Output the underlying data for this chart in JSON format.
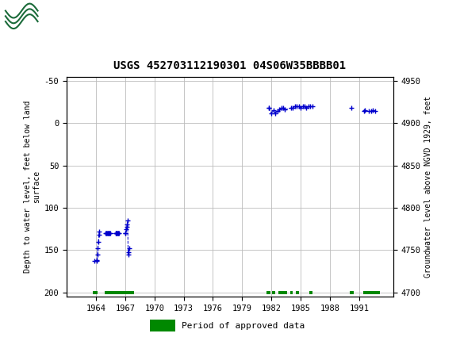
{
  "title": "USGS 452703112190301 04S06W35BBBB01",
  "ylim_left": [
    205,
    -55
  ],
  "ylim_right": [
    4695,
    4955
  ],
  "yticks_left": [
    -50,
    0,
    50,
    100,
    150,
    200
  ],
  "yticks_right": [
    4700,
    4750,
    4800,
    4850,
    4900,
    4950
  ],
  "ylabel_left": "Depth to water level, feet below land\nsurface",
  "ylabel_right": "Groundwater level above NGVD 1929, feet",
  "header_color": "#1b6b3a",
  "plot_bg": "#ffffff",
  "grid_color": "#bbbbbb",
  "data_color": "#0000cc",
  "approved_color": "#008800",
  "data_points": [
    {
      "year": 1963.85,
      "depth": 163
    },
    {
      "year": 1964.05,
      "depth": 163
    },
    {
      "year": 1964.1,
      "depth": 162
    },
    {
      "year": 1964.15,
      "depth": 155
    },
    {
      "year": 1964.2,
      "depth": 148
    },
    {
      "year": 1964.25,
      "depth": 140
    },
    {
      "year": 1964.3,
      "depth": 132
    },
    {
      "year": 1964.35,
      "depth": 128
    },
    {
      "year": 1965.0,
      "depth": 130
    },
    {
      "year": 1965.05,
      "depth": 130
    },
    {
      "year": 1965.1,
      "depth": 130
    },
    {
      "year": 1965.15,
      "depth": 130
    },
    {
      "year": 1965.2,
      "depth": 130
    },
    {
      "year": 1965.25,
      "depth": 130
    },
    {
      "year": 1965.3,
      "depth": 130
    },
    {
      "year": 1965.35,
      "depth": 130
    },
    {
      "year": 1965.4,
      "depth": 130
    },
    {
      "year": 1965.45,
      "depth": 130
    },
    {
      "year": 1966.0,
      "depth": 130
    },
    {
      "year": 1966.05,
      "depth": 130
    },
    {
      "year": 1966.1,
      "depth": 130
    },
    {
      "year": 1966.15,
      "depth": 130
    },
    {
      "year": 1966.2,
      "depth": 130
    },
    {
      "year": 1966.25,
      "depth": 130
    },
    {
      "year": 1966.3,
      "depth": 130
    },
    {
      "year": 1966.35,
      "depth": 130
    },
    {
      "year": 1967.0,
      "depth": 130
    },
    {
      "year": 1967.05,
      "depth": 130
    },
    {
      "year": 1967.1,
      "depth": 125
    },
    {
      "year": 1967.15,
      "depth": 122
    },
    {
      "year": 1967.2,
      "depth": 120
    },
    {
      "year": 1967.25,
      "depth": 115
    },
    {
      "year": 1967.3,
      "depth": 155
    },
    {
      "year": 1967.35,
      "depth": 152
    },
    {
      "year": 1967.4,
      "depth": 148
    },
    {
      "year": 1981.7,
      "depth": -18
    },
    {
      "year": 1981.75,
      "depth": -18
    },
    {
      "year": 1982.0,
      "depth": -12
    },
    {
      "year": 1982.2,
      "depth": -15
    },
    {
      "year": 1982.4,
      "depth": -12
    },
    {
      "year": 1982.6,
      "depth": -14
    },
    {
      "year": 1982.8,
      "depth": -16
    },
    {
      "year": 1983.0,
      "depth": -18
    },
    {
      "year": 1983.2,
      "depth": -18
    },
    {
      "year": 1983.4,
      "depth": -16
    },
    {
      "year": 1984.0,
      "depth": -18
    },
    {
      "year": 1984.2,
      "depth": -18
    },
    {
      "year": 1984.4,
      "depth": -20
    },
    {
      "year": 1984.6,
      "depth": -20
    },
    {
      "year": 1984.8,
      "depth": -20
    },
    {
      "year": 1985.0,
      "depth": -18
    },
    {
      "year": 1985.2,
      "depth": -20
    },
    {
      "year": 1985.4,
      "depth": -20
    },
    {
      "year": 1985.6,
      "depth": -18
    },
    {
      "year": 1985.8,
      "depth": -20
    },
    {
      "year": 1986.0,
      "depth": -20
    },
    {
      "year": 1986.2,
      "depth": -20
    },
    {
      "year": 1990.2,
      "depth": -18
    },
    {
      "year": 1991.5,
      "depth": -14
    },
    {
      "year": 1991.6,
      "depth": -15
    },
    {
      "year": 1992.0,
      "depth": -14
    },
    {
      "year": 1992.2,
      "depth": -14
    },
    {
      "year": 1992.4,
      "depth": -15
    },
    {
      "year": 1992.6,
      "depth": -14
    }
  ],
  "approved_bars": [
    {
      "start": 1963.7,
      "end": 1964.2
    },
    {
      "start": 1964.9,
      "end": 1967.9
    },
    {
      "start": 1981.5,
      "end": 1981.9
    },
    {
      "start": 1982.1,
      "end": 1982.4
    },
    {
      "start": 1982.7,
      "end": 1983.6
    },
    {
      "start": 1983.9,
      "end": 1984.2
    },
    {
      "start": 1984.5,
      "end": 1984.8
    },
    {
      "start": 1985.9,
      "end": 1986.2
    },
    {
      "start": 1990.0,
      "end": 1990.4
    },
    {
      "start": 1991.4,
      "end": 1993.1
    }
  ],
  "xlim": [
    1961.0,
    1994.5
  ],
  "xticks": [
    1964,
    1967,
    1970,
    1973,
    1976,
    1979,
    1982,
    1985,
    1988,
    1991
  ]
}
